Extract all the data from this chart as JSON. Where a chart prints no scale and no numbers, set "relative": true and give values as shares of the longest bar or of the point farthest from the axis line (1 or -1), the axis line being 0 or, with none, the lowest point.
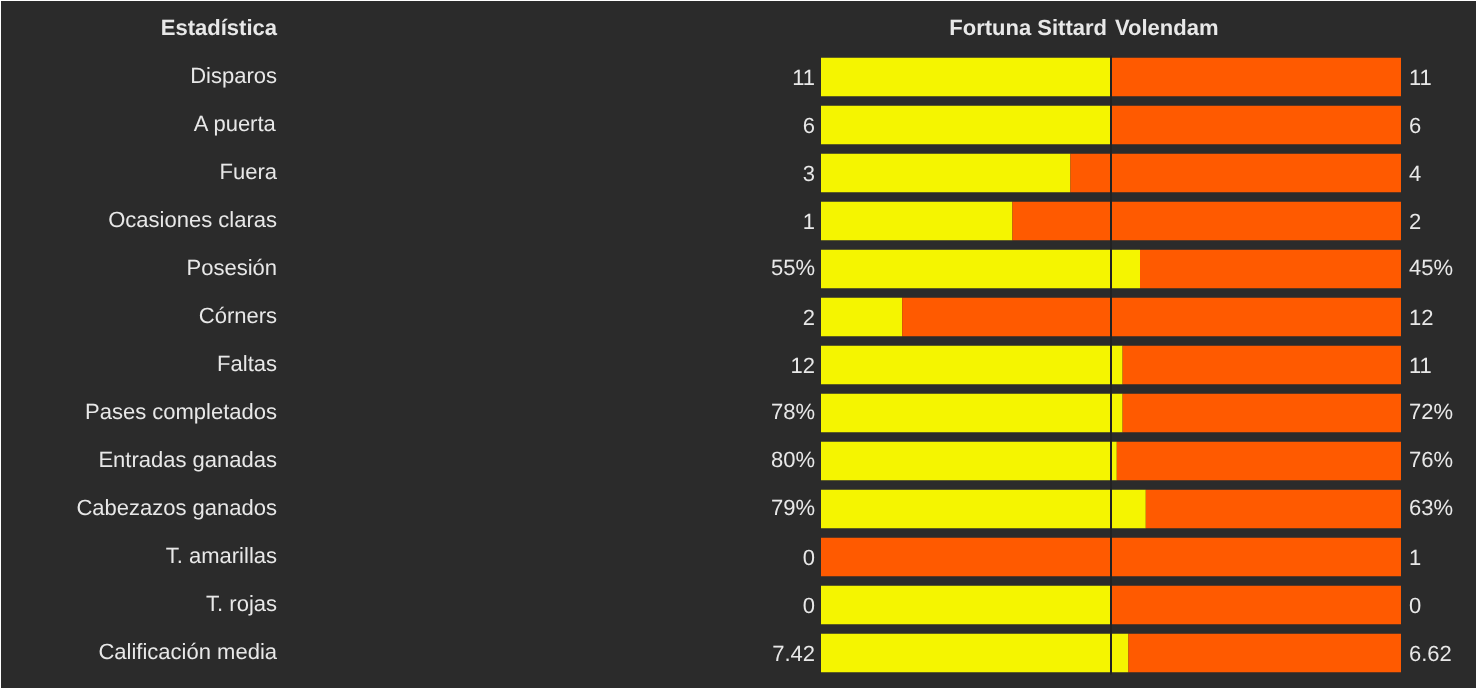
{
  "chart_data": {
    "type": "bar",
    "orientation": "horizontal",
    "stacked": true,
    "relative": true,
    "ylabel": "Estadística",
    "categories": [
      "Disparos",
      "A puerta",
      "Fuera",
      "Ocasiones claras",
      "Posesión",
      "Córners",
      "Faltas",
      "Pases completados",
      "Entradas ganadas",
      "Cabezazos ganados",
      "T. amarillas",
      "T. rojas",
      "Calificación media"
    ],
    "series": [
      {
        "name": "Fortuna Sittard",
        "color": "#f5f500",
        "values": [
          0.5,
          0.5,
          0.43,
          0.33,
          0.55,
          0.14,
          0.52,
          0.52,
          0.51,
          0.56,
          0,
          0.5,
          0.53
        ]
      },
      {
        "name": "Volendam",
        "color": "#ff5a00",
        "values": [
          0.5,
          0.5,
          0.57,
          0.67,
          0.45,
          0.86,
          0.48,
          0.48,
          0.49,
          0.44,
          1,
          0.5,
          0.47
        ]
      }
    ],
    "annotations": [
      "11",
      "11",
      "6",
      "6",
      "3",
      "4",
      "1",
      "2",
      "55%",
      "45%",
      "2",
      "12",
      "12",
      "11",
      "78%",
      "72%",
      "80%",
      "76%",
      "79%",
      "63%",
      "0",
      "1",
      "0",
      "0",
      "7.42",
      "6.62"
    ],
    "ref_lines": [
      {
        "axis": "x",
        "value": 0.5,
        "color": "#222222"
      }
    ]
  }
}
